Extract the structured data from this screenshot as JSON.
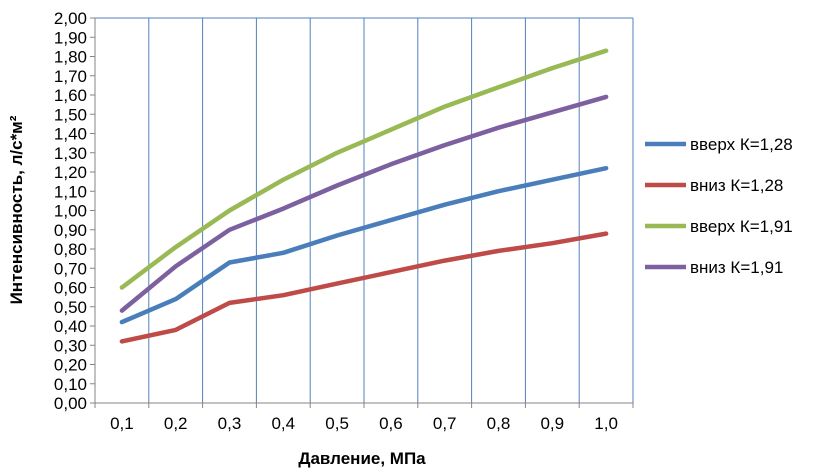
{
  "chart_data": {
    "type": "line",
    "xlabel": "Давление, МПа",
    "ylabel": "Интенсивность, л/с*м²",
    "categories": [
      "0,1",
      "0,2",
      "0,3",
      "0,4",
      "0,5",
      "0,6",
      "0,7",
      "0,8",
      "0,9",
      "1,0"
    ],
    "x": [
      0.1,
      0.2,
      0.3,
      0.4,
      0.5,
      0.6,
      0.7,
      0.8,
      0.9,
      1.0
    ],
    "ylim": [
      0,
      2
    ],
    "y_ticks": [
      "0,00",
      "0,10",
      "0,20",
      "0,30",
      "0,40",
      "0,50",
      "0,60",
      "0,70",
      "0,80",
      "0,90",
      "1,00",
      "1,10",
      "1,20",
      "1,30",
      "1,40",
      "1,50",
      "1,60",
      "1,70",
      "1,80",
      "1,90",
      "2,00"
    ],
    "grid": "vertical",
    "legend_position": "right",
    "series": [
      {
        "name": "вверх К=1,28",
        "color": "#4a7ebb",
        "values": [
          0.42,
          0.54,
          0.73,
          0.78,
          0.87,
          0.95,
          1.03,
          1.1,
          1.16,
          1.22
        ]
      },
      {
        "name": "вниз К=1,28",
        "color": "#be4b48",
        "values": [
          0.32,
          0.38,
          0.52,
          0.56,
          0.62,
          0.68,
          0.74,
          0.79,
          0.83,
          0.88
        ]
      },
      {
        "name": "вверх К=1,91",
        "color": "#98b954",
        "values": [
          0.6,
          0.81,
          1.0,
          1.16,
          1.3,
          1.42,
          1.54,
          1.64,
          1.74,
          1.83
        ]
      },
      {
        "name": "вниз К=1,91",
        "color": "#7d60a0",
        "values": [
          0.48,
          0.71,
          0.9,
          1.01,
          1.13,
          1.24,
          1.34,
          1.43,
          1.51,
          1.59
        ]
      }
    ]
  }
}
